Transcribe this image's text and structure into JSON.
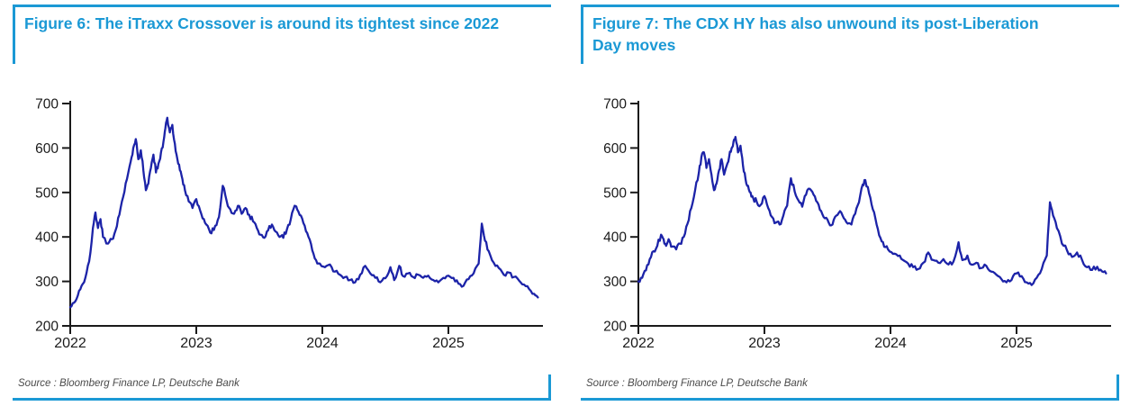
{
  "colors": {
    "accent": "#1b99d5",
    "line": "#1c23a8",
    "axis": "#1a1a1a",
    "source_text": "#4a4a4a"
  },
  "panels": [
    {
      "title": "Figure 6: The iTraxx Crossover is around its tightest since 2022",
      "source": "Source : Bloomberg Finance LP, Deutsche Bank"
    },
    {
      "title": "Figure 7: The CDX HY has also unwound its post-Liberation Day moves",
      "source": "Source : Bloomberg Finance LP, Deutsche Bank"
    }
  ],
  "chart_data": [
    {
      "type": "line",
      "title": "Figure 6: The iTraxx Crossover is around its tightest since 2022",
      "xlabel": "",
      "ylabel": "",
      "xlim": [
        2022,
        2025.75
      ],
      "ylim": [
        200,
        700
      ],
      "xticks": [
        2022,
        2023,
        2024,
        2025
      ],
      "yticks": [
        200,
        300,
        400,
        500,
        600,
        700
      ],
      "grid": false,
      "legend_position": "none",
      "line_color": "#1c23a8",
      "series": [
        {
          "name": "iTraxx Crossover",
          "x": [
            2022.0,
            2022.03,
            2022.06,
            2022.09,
            2022.12,
            2022.15,
            2022.18,
            2022.2,
            2022.22,
            2022.24,
            2022.26,
            2022.3,
            2022.33,
            2022.36,
            2022.39,
            2022.42,
            2022.45,
            2022.48,
            2022.5,
            2022.52,
            2022.54,
            2022.56,
            2022.58,
            2022.6,
            2022.62,
            2022.64,
            2022.66,
            2022.68,
            2022.7,
            2022.72,
            2022.74,
            2022.755,
            2022.77,
            2022.79,
            2022.81,
            2022.83,
            2022.85,
            2022.87,
            2022.89,
            2022.91,
            2022.94,
            2022.97,
            2023.0,
            2023.03,
            2023.06,
            2023.09,
            2023.12,
            2023.15,
            2023.18,
            2023.21,
            2023.24,
            2023.27,
            2023.3,
            2023.33,
            2023.36,
            2023.39,
            2023.42,
            2023.45,
            2023.48,
            2023.51,
            2023.54,
            2023.57,
            2023.6,
            2023.63,
            2023.66,
            2023.69,
            2023.72,
            2023.75,
            2023.78,
            2023.8,
            2023.83,
            2023.86,
            2023.89,
            2023.92,
            2023.95,
            2023.98,
            2024.02,
            2024.06,
            2024.1,
            2024.14,
            2024.18,
            2024.22,
            2024.26,
            2024.3,
            2024.34,
            2024.38,
            2024.42,
            2024.46,
            2024.5,
            2024.54,
            2024.57,
            2024.61,
            2024.64,
            2024.68,
            2024.72,
            2024.76,
            2024.8,
            2024.84,
            2024.88,
            2024.92,
            2024.96,
            2025.0,
            2025.04,
            2025.08,
            2025.12,
            2025.16,
            2025.2,
            2025.24,
            2025.265,
            2025.29,
            2025.32,
            2025.36,
            2025.4,
            2025.44,
            2025.48,
            2025.52,
            2025.56,
            2025.6,
            2025.64,
            2025.68,
            2025.71
          ],
          "values": [
            242,
            252,
            268,
            290,
            308,
            345,
            420,
            455,
            420,
            440,
            400,
            385,
            395,
            415,
            450,
            490,
            530,
            570,
            600,
            620,
            575,
            595,
            550,
            505,
            520,
            555,
            585,
            545,
            565,
            590,
            615,
            645,
            668,
            635,
            652,
            610,
            575,
            550,
            530,
            505,
            480,
            465,
            485,
            460,
            440,
            425,
            408,
            425,
            445,
            515,
            482,
            462,
            452,
            470,
            452,
            465,
            450,
            435,
            420,
            405,
            398,
            415,
            428,
            412,
            400,
            398,
            418,
            440,
            470,
            462,
            448,
            425,
            400,
            370,
            348,
            340,
            332,
            338,
            322,
            315,
            310,
            303,
            298,
            315,
            335,
            318,
            308,
            298,
            307,
            332,
            303,
            335,
            312,
            318,
            310,
            315,
            308,
            313,
            303,
            298,
            308,
            313,
            308,
            295,
            290,
            305,
            318,
            340,
            430,
            392,
            368,
            342,
            330,
            315,
            320,
            310,
            302,
            293,
            283,
            272,
            264
          ]
        }
      ]
    },
    {
      "type": "line",
      "title": "Figure 7: The CDX HY has also unwound its post-Liberation Day moves",
      "xlabel": "",
      "ylabel": "",
      "xlim": [
        2022,
        2025.75
      ],
      "ylim": [
        200,
        700
      ],
      "xticks": [
        2022,
        2023,
        2024,
        2025
      ],
      "yticks": [
        200,
        300,
        400,
        500,
        600,
        700
      ],
      "grid": false,
      "legend_position": "none",
      "line_color": "#1c23a8",
      "series": [
        {
          "name": "CDX HY",
          "x": [
            2022.0,
            2022.03,
            2022.06,
            2022.09,
            2022.12,
            2022.15,
            2022.18,
            2022.2,
            2022.22,
            2022.24,
            2022.26,
            2022.3,
            2022.33,
            2022.36,
            2022.39,
            2022.42,
            2022.45,
            2022.48,
            2022.5,
            2022.52,
            2022.54,
            2022.56,
            2022.58,
            2022.6,
            2022.62,
            2022.64,
            2022.66,
            2022.68,
            2022.7,
            2022.72,
            2022.74,
            2022.755,
            2022.77,
            2022.79,
            2022.81,
            2022.83,
            2022.85,
            2022.87,
            2022.89,
            2022.91,
            2022.94,
            2022.97,
            2023.0,
            2023.03,
            2023.06,
            2023.09,
            2023.12,
            2023.15,
            2023.18,
            2023.21,
            2023.24,
            2023.27,
            2023.3,
            2023.33,
            2023.36,
            2023.39,
            2023.42,
            2023.45,
            2023.48,
            2023.51,
            2023.54,
            2023.57,
            2023.6,
            2023.63,
            2023.66,
            2023.69,
            2023.72,
            2023.75,
            2023.78,
            2023.8,
            2023.83,
            2023.86,
            2023.89,
            2023.92,
            2023.95,
            2023.98,
            2024.02,
            2024.06,
            2024.1,
            2024.14,
            2024.18,
            2024.22,
            2024.26,
            2024.3,
            2024.34,
            2024.38,
            2024.42,
            2024.46,
            2024.5,
            2024.54,
            2024.57,
            2024.61,
            2024.64,
            2024.68,
            2024.72,
            2024.76,
            2024.8,
            2024.84,
            2024.88,
            2024.92,
            2024.96,
            2025.0,
            2025.04,
            2025.08,
            2025.12,
            2025.16,
            2025.2,
            2025.24,
            2025.265,
            2025.29,
            2025.32,
            2025.36,
            2025.4,
            2025.44,
            2025.48,
            2025.52,
            2025.56,
            2025.6,
            2025.64,
            2025.68,
            2025.71
          ],
          "values": [
            300,
            308,
            325,
            350,
            368,
            380,
            405,
            395,
            380,
            395,
            378,
            372,
            385,
            400,
            430,
            465,
            505,
            545,
            580,
            590,
            555,
            575,
            540,
            505,
            520,
            550,
            575,
            540,
            560,
            580,
            600,
            615,
            625,
            590,
            605,
            560,
            530,
            515,
            500,
            488,
            478,
            472,
            492,
            465,
            445,
            432,
            428,
            448,
            470,
            532,
            502,
            482,
            468,
            495,
            508,
            495,
            478,
            458,
            442,
            432,
            428,
            448,
            458,
            442,
            430,
            428,
            452,
            478,
            518,
            528,
            498,
            462,
            428,
            398,
            378,
            372,
            362,
            357,
            348,
            340,
            332,
            328,
            342,
            365,
            348,
            342,
            350,
            338,
            345,
            388,
            348,
            358,
            338,
            342,
            330,
            335,
            322,
            315,
            305,
            298,
            303,
            318,
            312,
            298,
            292,
            308,
            328,
            358,
            478,
            448,
            420,
            385,
            370,
            355,
            365,
            348,
            332,
            326,
            333,
            322,
            318
          ]
        }
      ]
    }
  ]
}
